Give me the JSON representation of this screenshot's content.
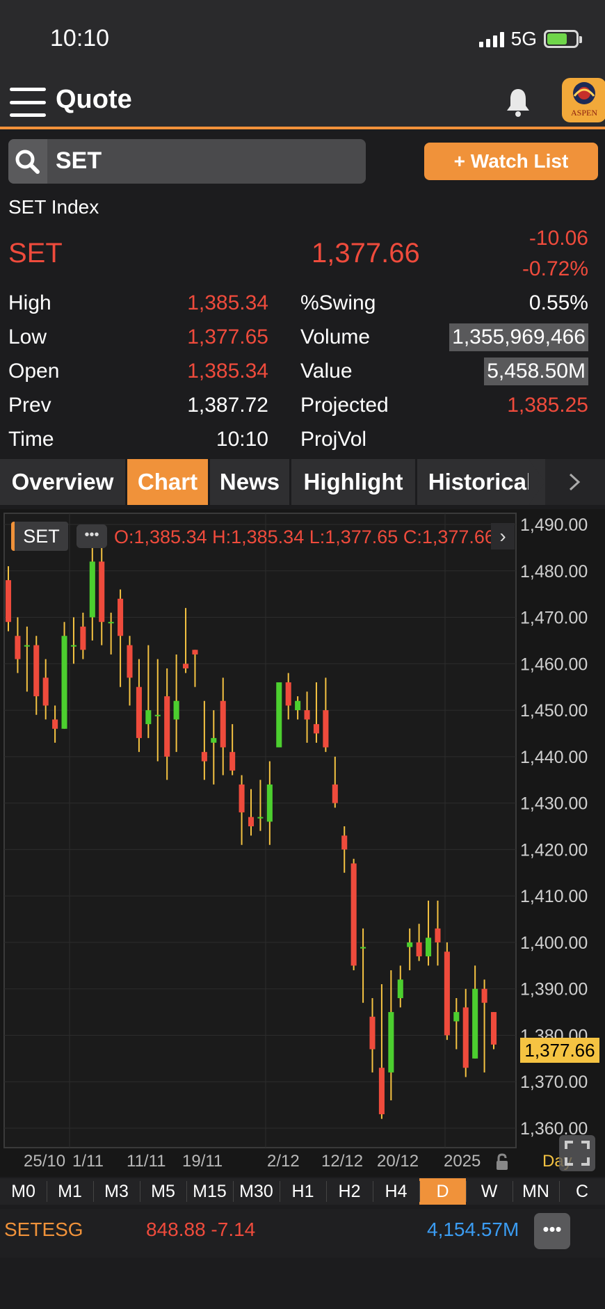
{
  "status": {
    "time": "10:10",
    "network": "5G"
  },
  "header": {
    "title": "Quote",
    "logo_text": "ASPEN"
  },
  "search": {
    "value": "SET",
    "watch_label": "+ Watch List"
  },
  "quote": {
    "index_name": "SET Index",
    "symbol": "SET",
    "last": "1,377.66",
    "change": "-10.06",
    "change_pct": "-0.72%"
  },
  "stats_left": [
    {
      "label": "High",
      "value": "1,385.34",
      "color": "red"
    },
    {
      "label": "Low",
      "value": "1,377.65",
      "color": "red"
    },
    {
      "label": "Open",
      "value": "1,385.34",
      "color": "red"
    },
    {
      "label": "Prev",
      "value": "1,387.72",
      "color": "white"
    },
    {
      "label": "Time",
      "value": "10:10",
      "color": "white"
    }
  ],
  "stats_right": [
    {
      "label": "%Swing",
      "value": "0.55%",
      "color": "white",
      "highlight": false
    },
    {
      "label": "Volume",
      "value": "1,355,969,466",
      "color": "white",
      "highlight": true
    },
    {
      "label": "Value",
      "value": "5,458.50M",
      "color": "white",
      "highlight": true
    },
    {
      "label": "Projected",
      "value": "1,385.25",
      "color": "red",
      "highlight": false
    },
    {
      "label": "ProjVol",
      "value": "",
      "color": "white",
      "highlight": false
    }
  ],
  "tabs": [
    "Overview",
    "Chart",
    "News",
    "Highlight",
    "Historical"
  ],
  "active_tab": "Chart",
  "chart_overlay": {
    "symbol": "SET",
    "ohlc_text": "O:1,385.34  H:1,385.34  L:1,377.65  C:1,377.66",
    "last_badge": "1,377.66",
    "timeframe": "Day"
  },
  "chart_data": {
    "type": "candlestick",
    "ylim": [
      1360,
      1492
    ],
    "y_ticks": [
      "1,490.00",
      "1,480.00",
      "1,470.00",
      "1,460.00",
      "1,450.00",
      "1,440.00",
      "1,430.00",
      "1,420.00",
      "1,410.00",
      "1,400.00",
      "1,390.00",
      "1,380.00",
      "1,370.00",
      "1,360.00"
    ],
    "x_tick_labels": [
      "25/10",
      "1/11",
      "11/11",
      "19/11",
      "2/12",
      "12/12",
      "20/12",
      "2025"
    ],
    "up_color": "#4ccf2f",
    "down_color": "#ef4b3c",
    "candles": [
      {
        "o": 1478,
        "h": 1481,
        "l": 1467,
        "c": 1469
      },
      {
        "o": 1466,
        "h": 1470,
        "l": 1458,
        "c": 1461
      },
      {
        "o": 1464,
        "h": 1468,
        "l": 1454,
        "c": 1464
      },
      {
        "o": 1464,
        "h": 1466,
        "l": 1449,
        "c": 1453
      },
      {
        "o": 1457,
        "h": 1461,
        "l": 1448,
        "c": 1451
      },
      {
        "o": 1448,
        "h": 1451,
        "l": 1443,
        "c": 1446
      },
      {
        "o": 1446,
        "h": 1469,
        "l": 1446,
        "c": 1466
      },
      {
        "o": 1464,
        "h": 1470,
        "l": 1460,
        "c": 1464
      },
      {
        "o": 1468,
        "h": 1471,
        "l": 1461,
        "c": 1463
      },
      {
        "o": 1470,
        "h": 1486,
        "l": 1465,
        "c": 1482
      },
      {
        "o": 1482,
        "h": 1485,
        "l": 1464,
        "c": 1469
      },
      {
        "o": 1469,
        "h": 1471,
        "l": 1462,
        "c": 1469
      },
      {
        "o": 1474,
        "h": 1476,
        "l": 1455,
        "c": 1466
      },
      {
        "o": 1464,
        "h": 1466,
        "l": 1451,
        "c": 1457
      },
      {
        "o": 1455,
        "h": 1461,
        "l": 1441,
        "c": 1444
      },
      {
        "o": 1447,
        "h": 1464,
        "l": 1444,
        "c": 1450
      },
      {
        "o": 1449,
        "h": 1461,
        "l": 1439,
        "c": 1449
      },
      {
        "o": 1453,
        "h": 1459,
        "l": 1435,
        "c": 1440
      },
      {
        "o": 1448,
        "h": 1462,
        "l": 1441,
        "c": 1452
      },
      {
        "o": 1460,
        "h": 1472,
        "l": 1458,
        "c": 1459
      },
      {
        "o": 1463,
        "h": 1463,
        "l": 1455,
        "c": 1462
      },
      {
        "o": 1441,
        "h": 1452,
        "l": 1435,
        "c": 1439
      },
      {
        "o": 1443,
        "h": 1450,
        "l": 1434,
        "c": 1444
      },
      {
        "o": 1452,
        "h": 1457,
        "l": 1436,
        "c": 1442
      },
      {
        "o": 1441,
        "h": 1447,
        "l": 1436,
        "c": 1437
      },
      {
        "o": 1434,
        "h": 1436,
        "l": 1421,
        "c": 1428
      },
      {
        "o": 1427,
        "h": 1433,
        "l": 1423,
        "c": 1425
      },
      {
        "o": 1427,
        "h": 1435,
        "l": 1424,
        "c": 1427
      },
      {
        "o": 1426,
        "h": 1439,
        "l": 1421,
        "c": 1434
      },
      {
        "o": 1442,
        "h": 1456,
        "l": 1442,
        "c": 1456
      },
      {
        "o": 1456,
        "h": 1458,
        "l": 1448,
        "c": 1451
      },
      {
        "o": 1450,
        "h": 1453,
        "l": 1448,
        "c": 1452
      },
      {
        "o": 1450,
        "h": 1454,
        "l": 1443,
        "c": 1448
      },
      {
        "o": 1447,
        "h": 1456,
        "l": 1443,
        "c": 1445
      },
      {
        "o": 1450,
        "h": 1457,
        "l": 1441,
        "c": 1442
      },
      {
        "o": 1434,
        "h": 1440,
        "l": 1429,
        "c": 1430
      },
      {
        "o": 1423,
        "h": 1425,
        "l": 1415,
        "c": 1420
      },
      {
        "o": 1417,
        "h": 1418,
        "l": 1394,
        "c": 1395
      },
      {
        "o": 1399,
        "h": 1403,
        "l": 1387,
        "c": 1399
      },
      {
        "o": 1384,
        "h": 1388,
        "l": 1372,
        "c": 1377
      },
      {
        "o": 1373,
        "h": 1391,
        "l": 1362,
        "c": 1363
      },
      {
        "o": 1372,
        "h": 1394,
        "l": 1366,
        "c": 1385
      },
      {
        "o": 1388,
        "h": 1395,
        "l": 1386,
        "c": 1392
      },
      {
        "o": 1399,
        "h": 1403,
        "l": 1394,
        "c": 1400
      },
      {
        "o": 1400,
        "h": 1404,
        "l": 1396,
        "c": 1397
      },
      {
        "o": 1397,
        "h": 1409,
        "l": 1395,
        "c": 1401
      },
      {
        "o": 1403,
        "h": 1409,
        "l": 1395,
        "c": 1400
      },
      {
        "o": 1398,
        "h": 1400,
        "l": 1379,
        "c": 1380
      },
      {
        "o": 1383,
        "h": 1388,
        "l": 1377,
        "c": 1385
      },
      {
        "o": 1386,
        "h": 1390,
        "l": 1371,
        "c": 1373
      },
      {
        "o": 1375,
        "h": 1395,
        "l": 1375,
        "c": 1390
      },
      {
        "o": 1390,
        "h": 1392,
        "l": 1372,
        "c": 1387
      },
      {
        "o": 1385,
        "h": 1385,
        "l": 1377,
        "c": 1378
      }
    ]
  },
  "periods": [
    "M0",
    "M1",
    "M3",
    "M5",
    "M15",
    "M30",
    "H1",
    "H2",
    "H4",
    "D",
    "W",
    "MN",
    "C"
  ],
  "active_period": "D",
  "bottom": {
    "symbol": "SETESG",
    "value": "848.88 -7.14",
    "amount": "4,154.57M"
  },
  "icons": [
    "menu-icon",
    "bell-icon",
    "search-icon",
    "chevron-right-icon",
    "more-icon",
    "lock-icon",
    "expand-icon"
  ]
}
